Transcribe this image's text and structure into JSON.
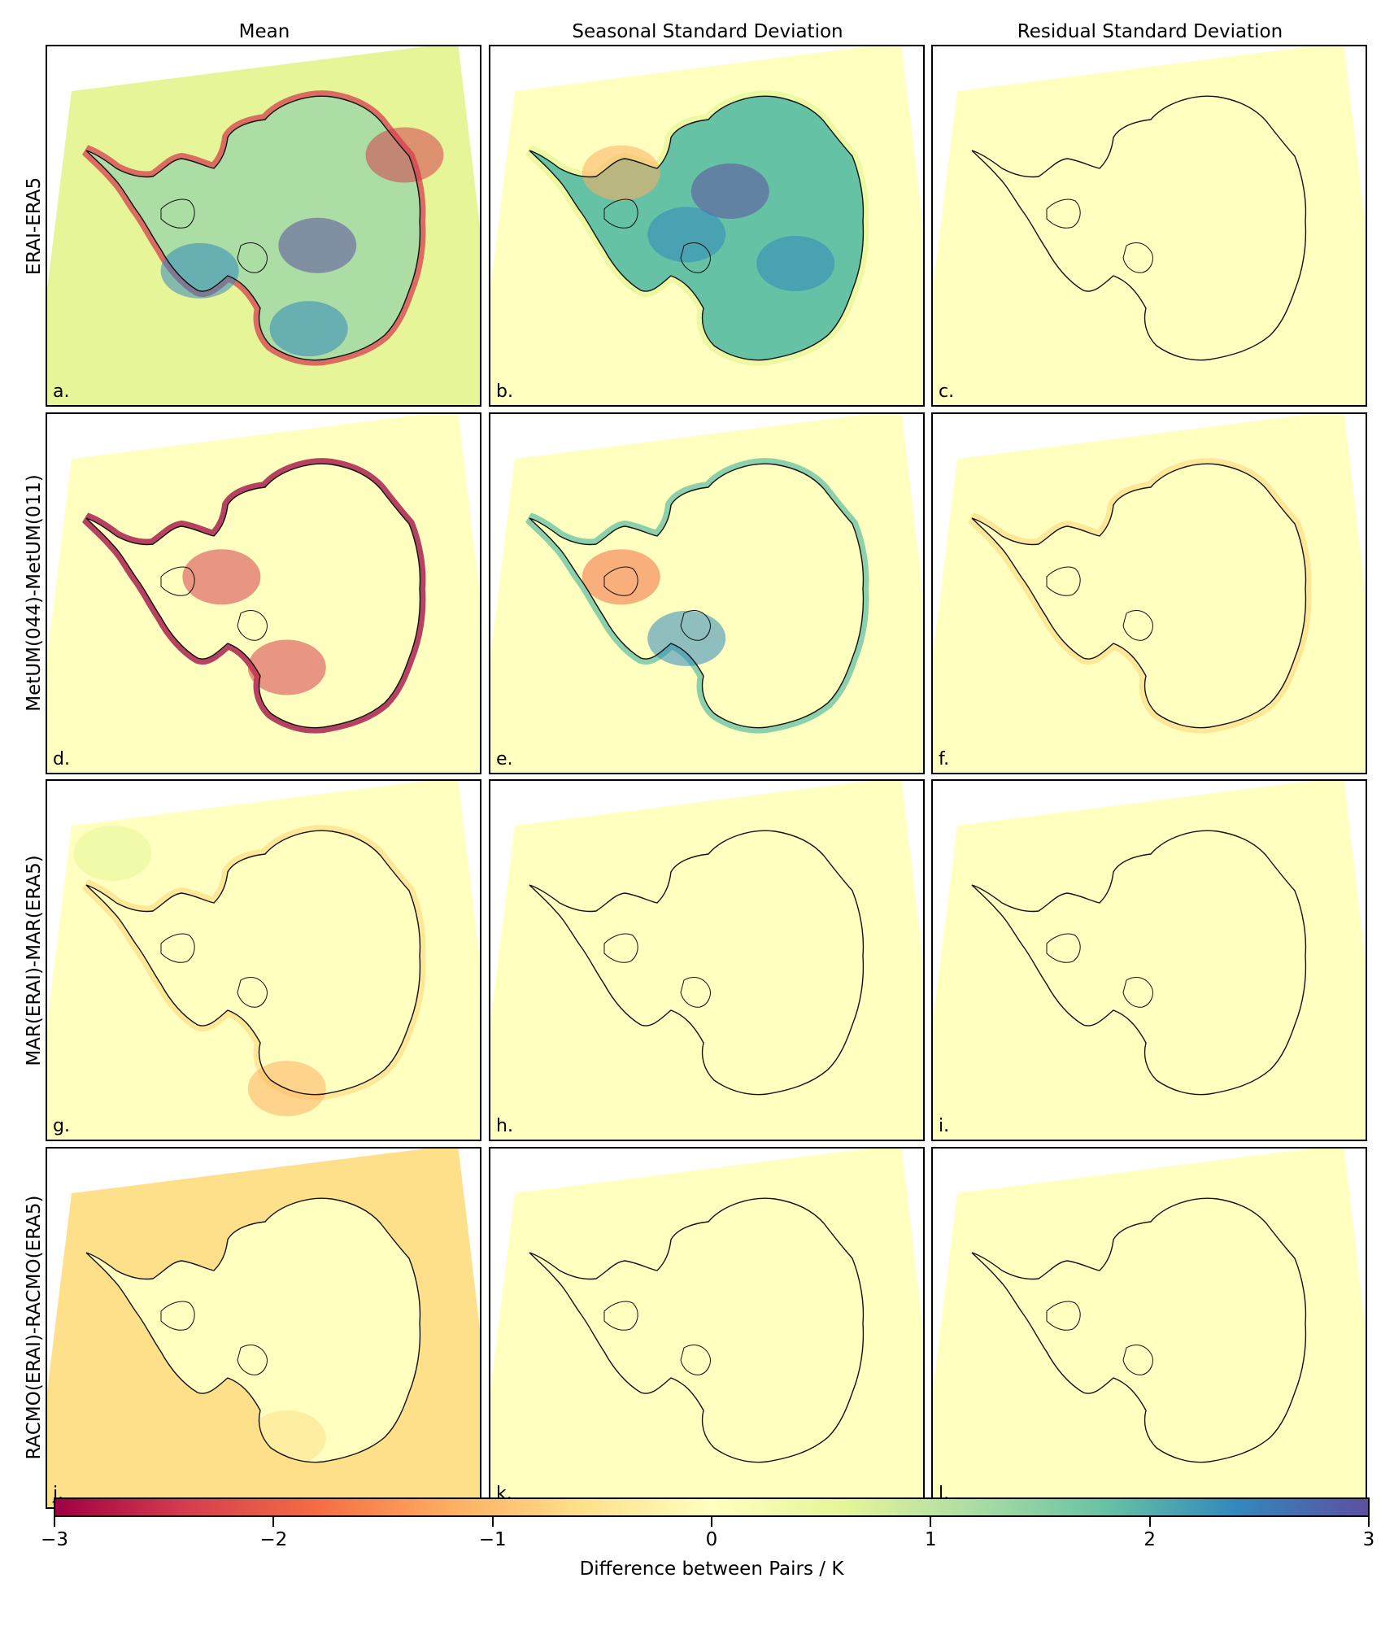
{
  "columns": [
    "Mean",
    "Seasonal Standard Deviation",
    "Residual Standard Deviation"
  ],
  "rows": [
    "ERAI-ERA5",
    "MetUM(044)-MetUM(011)",
    "MAR(ERAI)-MAR(ERA5)",
    "RACMO(ERAI)-RACMO(ERA5)"
  ],
  "panels": [
    {
      "label": "a.",
      "field": "strong-mixed"
    },
    {
      "label": "b.",
      "field": "interior-positive"
    },
    {
      "label": "c.",
      "field": "near-zero"
    },
    {
      "label": "d.",
      "field": "coastal-negative"
    },
    {
      "label": "e.",
      "field": "coastal-mixed"
    },
    {
      "label": "f.",
      "field": "near-zero-edge"
    },
    {
      "label": "g.",
      "field": "weak-mixed"
    },
    {
      "label": "h.",
      "field": "near-zero"
    },
    {
      "label": "i.",
      "field": "near-zero"
    },
    {
      "label": "j.",
      "field": "weak-negative"
    },
    {
      "label": "k.",
      "field": "weak-positive"
    },
    {
      "label": "l.",
      "field": "near-zero"
    }
  ],
  "chart_data": {
    "type": "heatmap",
    "colormap": "Spectral",
    "colorbar": {
      "label": "Difference between Pairs / K",
      "vmin": -3,
      "vmax": 3,
      "ticks": [
        -3,
        -2,
        -1,
        0,
        1,
        2,
        3
      ],
      "tick_labels": [
        "−3",
        "−2",
        "−1",
        "0",
        "1",
        "2",
        "3"
      ],
      "colors": [
        "#9e0142",
        "#d53e4f",
        "#f46d43",
        "#fdae61",
        "#fee08b",
        "#ffffbf",
        "#e6f598",
        "#abdda4",
        "#66c2a5",
        "#3288bd",
        "#5e4fa2"
      ]
    }
  }
}
